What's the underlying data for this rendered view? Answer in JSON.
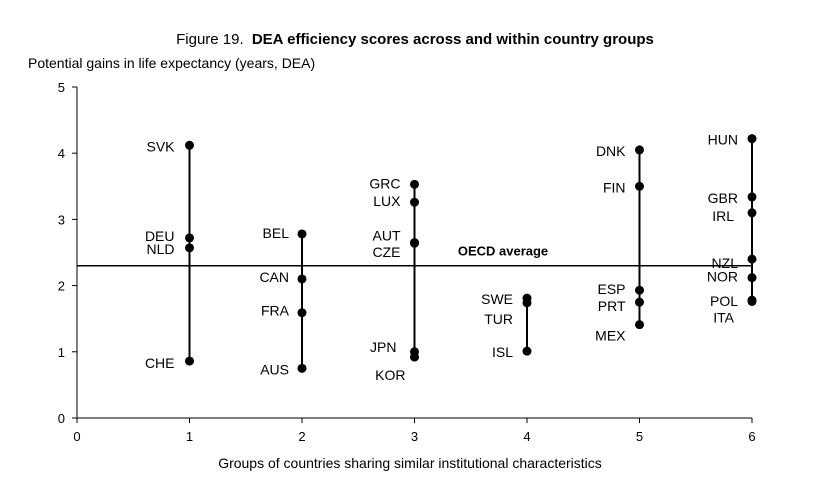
{
  "chart_data": {
    "type": "scatter",
    "title_prefix": "Figure 19.",
    "title_bold": "DEA efficiency scores across and within country groups",
    "ylabel": "Potential  gains in life expectancy (years, DEA)",
    "xlabel": "Groups of countries sharing similar institutional characteristics",
    "xlim": [
      0,
      6
    ],
    "ylim": [
      0,
      5
    ],
    "xticks": [
      "0",
      "1",
      "2",
      "3",
      "4",
      "5",
      "6"
    ],
    "yticks": [
      "0",
      "1",
      "2",
      "3",
      "4",
      "5"
    ],
    "reference_line": {
      "label": "OECD average",
      "value": 2.3
    },
    "grid": false,
    "groups": [
      {
        "x": 1,
        "points": [
          {
            "label": "SVK",
            "y": 4.12
          },
          {
            "label": "DEU",
            "y": 2.72
          },
          {
            "label": "NLD",
            "y": 2.57
          },
          {
            "label": "CHE",
            "y": 0.86
          }
        ]
      },
      {
        "x": 2,
        "points": [
          {
            "label": "BEL",
            "y": 2.78
          },
          {
            "label": "CAN",
            "y": 2.1
          },
          {
            "label": "FRA",
            "y": 1.59
          },
          {
            "label": "AUS",
            "y": 0.75
          }
        ]
      },
      {
        "x": 3,
        "points": [
          {
            "label": "GRC",
            "y": 3.53
          },
          {
            "label": "LUX",
            "y": 3.26
          },
          {
            "label": "AUT",
            "y": 2.65
          },
          {
            "label": "CZE",
            "y": 2.64
          },
          {
            "label": "JPN",
            "y": 1.0
          },
          {
            "label": "KOR",
            "y": 0.92
          }
        ]
      },
      {
        "x": 4,
        "points": [
          {
            "label": "SWE",
            "y": 1.81
          },
          {
            "label": "TUR",
            "y": 1.74
          },
          {
            "label": "ISL",
            "y": 1.01
          }
        ]
      },
      {
        "x": 5,
        "points": [
          {
            "label": "DNK",
            "y": 4.05
          },
          {
            "label": "FIN",
            "y": 3.5
          },
          {
            "label": "ESP",
            "y": 1.93
          },
          {
            "label": "PRT",
            "y": 1.75
          },
          {
            "label": "MEX",
            "y": 1.41
          }
        ]
      },
      {
        "x": 6,
        "points": [
          {
            "label": "HUN",
            "y": 4.22
          },
          {
            "label": "GBR",
            "y": 3.34
          },
          {
            "label": "IRL",
            "y": 3.1
          },
          {
            "label": "NZL",
            "y": 2.4
          },
          {
            "label": "NOR",
            "y": 2.12
          },
          {
            "label": "POL",
            "y": 1.78
          },
          {
            "label": "ITA",
            "y": 1.76
          }
        ]
      }
    ]
  }
}
